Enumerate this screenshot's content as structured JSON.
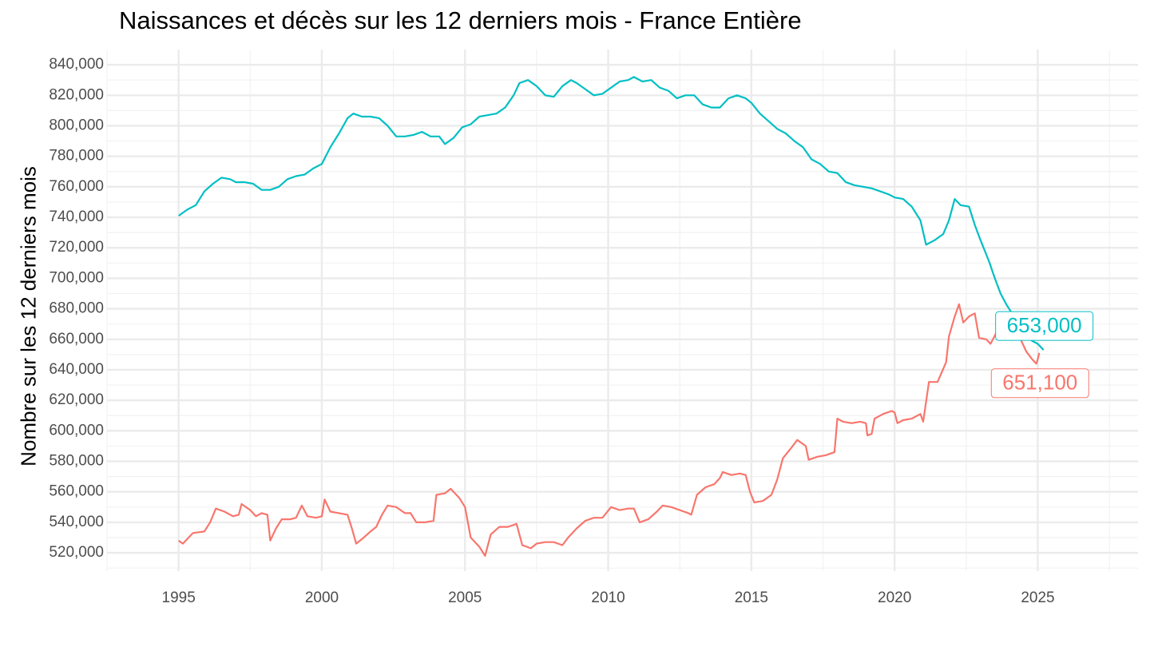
{
  "chart_data": {
    "type": "line",
    "title": "Naissances et décès sur les 12 derniers mois - France Entière",
    "xlabel": "",
    "ylabel": "Nombre sur les 12 derniers mois",
    "xlim": [
      1992.5,
      2028.5
    ],
    "ylim": [
      508000,
      850000
    ],
    "x_ticks": [
      1995,
      2000,
      2005,
      2010,
      2015,
      2020,
      2025
    ],
    "y_ticks": [
      520000,
      540000,
      560000,
      580000,
      600000,
      620000,
      640000,
      660000,
      680000,
      700000,
      720000,
      740000,
      760000,
      780000,
      800000,
      820000,
      840000
    ],
    "y_tick_labels": [
      "520,000",
      "540,000",
      "560,000",
      "580,000",
      "600,000",
      "620,000",
      "640,000",
      "660,000",
      "680,000",
      "700,000",
      "720,000",
      "740,000",
      "760,000",
      "780,000",
      "800,000",
      "820,000",
      "840,000"
    ],
    "grid": true,
    "legend": "none",
    "series": [
      {
        "color": "#00BFC4",
        "end_label": "653,000",
        "points": [
          [
            1995.0,
            741000
          ],
          [
            1995.3,
            745000
          ],
          [
            1995.6,
            748000
          ],
          [
            1995.9,
            757000
          ],
          [
            1996.2,
            762000
          ],
          [
            1996.5,
            766000
          ],
          [
            1996.8,
            765000
          ],
          [
            1997.0,
            763000
          ],
          [
            1997.3,
            763000
          ],
          [
            1997.6,
            762000
          ],
          [
            1997.9,
            758000
          ],
          [
            1998.2,
            758000
          ],
          [
            1998.5,
            760000
          ],
          [
            1998.8,
            765000
          ],
          [
            1999.1,
            767000
          ],
          [
            1999.4,
            768000
          ],
          [
            1999.7,
            772000
          ],
          [
            2000.0,
            775000
          ],
          [
            2000.3,
            786000
          ],
          [
            2000.6,
            795000
          ],
          [
            2000.9,
            805000
          ],
          [
            2001.1,
            808000
          ],
          [
            2001.4,
            806000
          ],
          [
            2001.7,
            806000
          ],
          [
            2002.0,
            805000
          ],
          [
            2002.3,
            800000
          ],
          [
            2002.6,
            793000
          ],
          [
            2002.9,
            793000
          ],
          [
            2003.2,
            794000
          ],
          [
            2003.5,
            796000
          ],
          [
            2003.8,
            793000
          ],
          [
            2004.1,
            793000
          ],
          [
            2004.3,
            788000
          ],
          [
            2004.6,
            792000
          ],
          [
            2004.9,
            799000
          ],
          [
            2005.2,
            801000
          ],
          [
            2005.5,
            806000
          ],
          [
            2005.8,
            807000
          ],
          [
            2006.1,
            808000
          ],
          [
            2006.4,
            812000
          ],
          [
            2006.7,
            820000
          ],
          [
            2006.9,
            828000
          ],
          [
            2007.2,
            830000
          ],
          [
            2007.5,
            826000
          ],
          [
            2007.8,
            820000
          ],
          [
            2008.1,
            819000
          ],
          [
            2008.4,
            826000
          ],
          [
            2008.7,
            830000
          ],
          [
            2008.9,
            828000
          ],
          [
            2009.2,
            824000
          ],
          [
            2009.5,
            820000
          ],
          [
            2009.8,
            821000
          ],
          [
            2010.1,
            825000
          ],
          [
            2010.4,
            829000
          ],
          [
            2010.7,
            830000
          ],
          [
            2010.9,
            832000
          ],
          [
            2011.2,
            829000
          ],
          [
            2011.5,
            830000
          ],
          [
            2011.8,
            825000
          ],
          [
            2012.1,
            823000
          ],
          [
            2012.4,
            818000
          ],
          [
            2012.7,
            820000
          ],
          [
            2013.0,
            820000
          ],
          [
            2013.3,
            814000
          ],
          [
            2013.6,
            812000
          ],
          [
            2013.9,
            812000
          ],
          [
            2014.2,
            818000
          ],
          [
            2014.5,
            820000
          ],
          [
            2014.8,
            818000
          ],
          [
            2015.0,
            815000
          ],
          [
            2015.3,
            808000
          ],
          [
            2015.6,
            803000
          ],
          [
            2015.9,
            798000
          ],
          [
            2016.2,
            795000
          ],
          [
            2016.5,
            790000
          ],
          [
            2016.8,
            786000
          ],
          [
            2017.1,
            778000
          ],
          [
            2017.4,
            775000
          ],
          [
            2017.7,
            770000
          ],
          [
            2018.0,
            769000
          ],
          [
            2018.3,
            763000
          ],
          [
            2018.6,
            761000
          ],
          [
            2018.9,
            760000
          ],
          [
            2019.2,
            759000
          ],
          [
            2019.5,
            757000
          ],
          [
            2019.8,
            755000
          ],
          [
            2020.0,
            753000
          ],
          [
            2020.3,
            752000
          ],
          [
            2020.6,
            747000
          ],
          [
            2020.9,
            738000
          ],
          [
            2021.1,
            722000
          ],
          [
            2021.4,
            725000
          ],
          [
            2021.7,
            729000
          ],
          [
            2021.9,
            738000
          ],
          [
            2022.1,
            752000
          ],
          [
            2022.3,
            748000
          ],
          [
            2022.6,
            747000
          ],
          [
            2022.8,
            735000
          ],
          [
            2023.0,
            725000
          ],
          [
            2023.3,
            711000
          ],
          [
            2023.5,
            700000
          ],
          [
            2023.7,
            690000
          ],
          [
            2023.9,
            683000
          ],
          [
            2024.2,
            674000
          ],
          [
            2024.5,
            665000
          ],
          [
            2024.8,
            659000
          ],
          [
            2025.0,
            657000
          ],
          [
            2025.2,
            653000
          ]
        ]
      },
      {
        "color": "#F8766D",
        "end_label": "651,100",
        "points": [
          [
            1995.0,
            528000
          ],
          [
            1995.15,
            526000
          ],
          [
            1995.5,
            533000
          ],
          [
            1995.9,
            534000
          ],
          [
            1996.1,
            540000
          ],
          [
            1996.3,
            549000
          ],
          [
            1996.6,
            547000
          ],
          [
            1996.9,
            544000
          ],
          [
            1997.1,
            545000
          ],
          [
            1997.2,
            552000
          ],
          [
            1997.5,
            548000
          ],
          [
            1997.7,
            544000
          ],
          [
            1997.9,
            546000
          ],
          [
            1998.1,
            545000
          ],
          [
            1998.2,
            528000
          ],
          [
            1998.4,
            536000
          ],
          [
            1998.6,
            542000
          ],
          [
            1998.9,
            542000
          ],
          [
            1999.1,
            543000
          ],
          [
            1999.3,
            551000
          ],
          [
            1999.5,
            544000
          ],
          [
            1999.8,
            543000
          ],
          [
            2000.0,
            544000
          ],
          [
            2000.1,
            555000
          ],
          [
            2000.3,
            547000
          ],
          [
            2000.6,
            546000
          ],
          [
            2000.9,
            545000
          ],
          [
            2001.05,
            536000
          ],
          [
            2001.2,
            526000
          ],
          [
            2001.4,
            529000
          ],
          [
            2001.7,
            534000
          ],
          [
            2001.9,
            537000
          ],
          [
            2002.1,
            545000
          ],
          [
            2002.3,
            551000
          ],
          [
            2002.6,
            550000
          ],
          [
            2002.9,
            546000
          ],
          [
            2003.1,
            546000
          ],
          [
            2003.3,
            540000
          ],
          [
            2003.6,
            540000
          ],
          [
            2003.9,
            541000
          ],
          [
            2004.0,
            558000
          ],
          [
            2004.3,
            559000
          ],
          [
            2004.5,
            562000
          ],
          [
            2004.8,
            556000
          ],
          [
            2005.0,
            550000
          ],
          [
            2005.2,
            530000
          ],
          [
            2005.5,
            524000
          ],
          [
            2005.7,
            518000
          ],
          [
            2005.9,
            532000
          ],
          [
            2006.2,
            537000
          ],
          [
            2006.5,
            537000
          ],
          [
            2006.8,
            539000
          ],
          [
            2007.0,
            525000
          ],
          [
            2007.3,
            523000
          ],
          [
            2007.5,
            526000
          ],
          [
            2007.8,
            527000
          ],
          [
            2008.1,
            527000
          ],
          [
            2008.4,
            525000
          ],
          [
            2008.6,
            530000
          ],
          [
            2008.9,
            536000
          ],
          [
            2009.2,
            541000
          ],
          [
            2009.5,
            543000
          ],
          [
            2009.8,
            543000
          ],
          [
            2010.1,
            550000
          ],
          [
            2010.4,
            548000
          ],
          [
            2010.7,
            549000
          ],
          [
            2010.9,
            549000
          ],
          [
            2011.1,
            540000
          ],
          [
            2011.4,
            542000
          ],
          [
            2011.7,
            547000
          ],
          [
            2011.9,
            551000
          ],
          [
            2012.2,
            550000
          ],
          [
            2012.5,
            548000
          ],
          [
            2012.8,
            546000
          ],
          [
            2012.9,
            545000
          ],
          [
            2013.1,
            558000
          ],
          [
            2013.4,
            563000
          ],
          [
            2013.7,
            565000
          ],
          [
            2013.9,
            569000
          ],
          [
            2014.0,
            573000
          ],
          [
            2014.3,
            571000
          ],
          [
            2014.6,
            572000
          ],
          [
            2014.8,
            571000
          ],
          [
            2014.95,
            560000
          ],
          [
            2015.1,
            553000
          ],
          [
            2015.4,
            554000
          ],
          [
            2015.7,
            558000
          ],
          [
            2015.9,
            568000
          ],
          [
            2016.1,
            582000
          ],
          [
            2016.4,
            589000
          ],
          [
            2016.6,
            594000
          ],
          [
            2016.9,
            590000
          ],
          [
            2017.0,
            581000
          ],
          [
            2017.3,
            583000
          ],
          [
            2017.6,
            584000
          ],
          [
            2017.9,
            586000
          ],
          [
            2018.0,
            608000
          ],
          [
            2018.2,
            606000
          ],
          [
            2018.5,
            605000
          ],
          [
            2018.8,
            606000
          ],
          [
            2019.0,
            605000
          ],
          [
            2019.05,
            597000
          ],
          [
            2019.2,
            598000
          ],
          [
            2019.3,
            608000
          ],
          [
            2019.6,
            611000
          ],
          [
            2019.9,
            613000
          ],
          [
            2020.0,
            612000
          ],
          [
            2020.1,
            605000
          ],
          [
            2020.3,
            607000
          ],
          [
            2020.6,
            608000
          ],
          [
            2020.9,
            611000
          ],
          [
            2021.0,
            606000
          ],
          [
            2021.2,
            632000
          ],
          [
            2021.5,
            632000
          ],
          [
            2021.8,
            645000
          ],
          [
            2021.9,
            662000
          ],
          [
            2022.1,
            675000
          ],
          [
            2022.25,
            683000
          ],
          [
            2022.4,
            671000
          ],
          [
            2022.6,
            675000
          ],
          [
            2022.8,
            677000
          ],
          [
            2022.95,
            661000
          ],
          [
            2023.2,
            660000
          ],
          [
            2023.35,
            657000
          ],
          [
            2023.6,
            666000
          ],
          [
            2023.9,
            669000
          ],
          [
            2024.0,
            675000
          ],
          [
            2024.2,
            666000
          ],
          [
            2024.4,
            660000
          ],
          [
            2024.6,
            652000
          ],
          [
            2024.8,
            647000
          ],
          [
            2024.95,
            644000
          ],
          [
            2025.0,
            647000
          ],
          [
            2025.05,
            651100
          ]
        ]
      }
    ]
  }
}
